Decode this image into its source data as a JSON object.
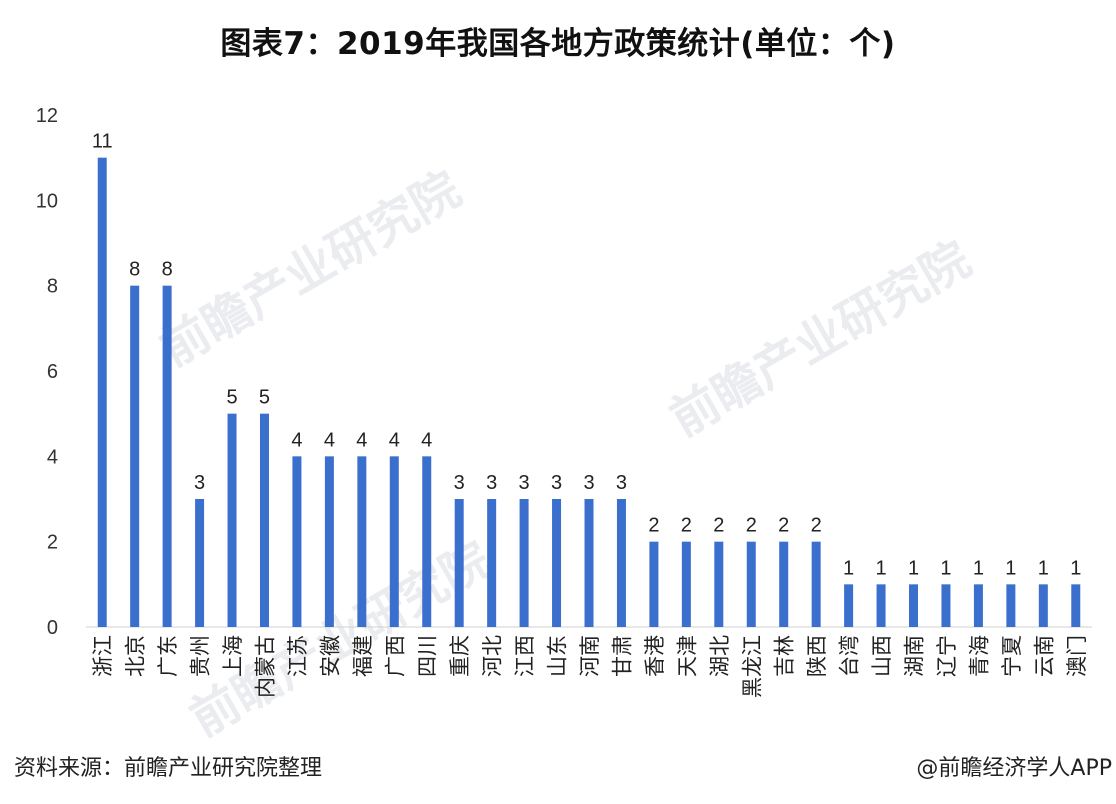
{
  "title": "图表7：2019年我国各地方政策统计(单位：个)",
  "source": "资料来源：前瞻产业研究院整理",
  "credit": "@前瞻经济学人APP",
  "watermark_text": "前瞻产业研究院",
  "chart_data": {
    "type": "bar",
    "title": "图表7：2019年我国各地方政策统计(单位：个)",
    "xlabel": "",
    "ylabel": "",
    "ylim": [
      0,
      12
    ],
    "yticks": [
      0,
      2,
      4,
      6,
      8,
      10,
      12
    ],
    "grid": false,
    "bar_color": "#3b6fce",
    "categories": [
      "浙江",
      "北京",
      "广东",
      "贵州",
      "上海",
      "内蒙古",
      "江苏",
      "安徽",
      "福建",
      "广西",
      "四川",
      "重庆",
      "河北",
      "江西",
      "山东",
      "河南",
      "甘肃",
      "香港",
      "天津",
      "湖北",
      "黑龙江",
      "吉林",
      "陕西",
      "台湾",
      "山西",
      "湖南",
      "辽宁",
      "青海",
      "宁夏",
      "云南",
      "澳门"
    ],
    "values": [
      11,
      8,
      8,
      3,
      5,
      5,
      4,
      4,
      4,
      4,
      4,
      3,
      3,
      3,
      3,
      3,
      3,
      2,
      2,
      2,
      2,
      2,
      2,
      1,
      1,
      1,
      1,
      1,
      1,
      1,
      1
    ]
  }
}
